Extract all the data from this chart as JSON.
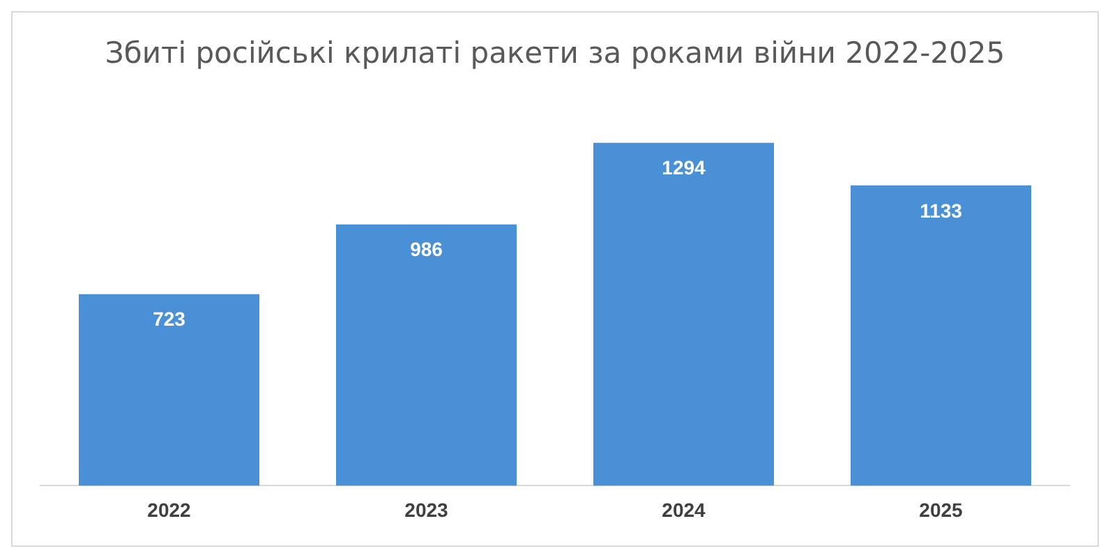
{
  "chart_data": {
    "type": "bar",
    "title": "Збиті російські крилаті ракети за роками війни 2022-2025",
    "categories": [
      "2022",
      "2023",
      "2024",
      "2025"
    ],
    "values": [
      723,
      986,
      1294,
      1133
    ],
    "color": "#4a90d6",
    "data_labels": true,
    "grid": false,
    "legend": false,
    "tick_labels": "x"
  }
}
